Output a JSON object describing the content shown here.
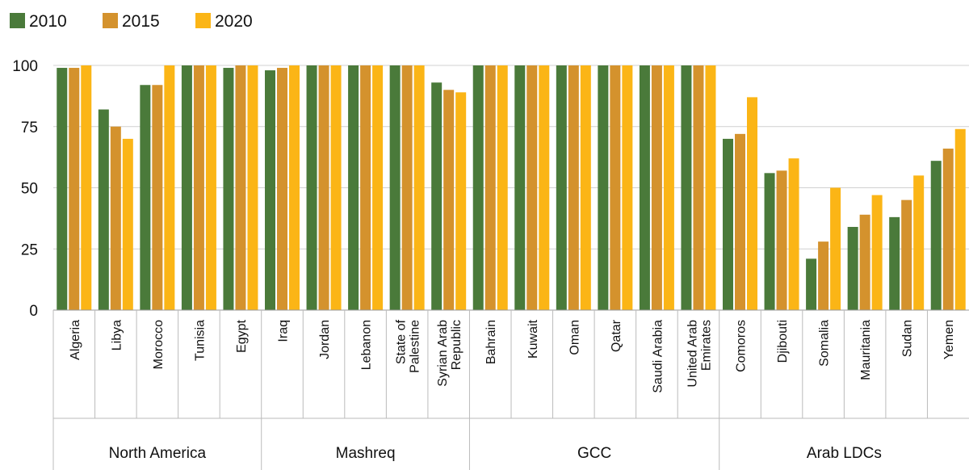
{
  "chart_data": {
    "type": "bar",
    "title": "",
    "xlabel": "",
    "ylabel": "",
    "ylim": [
      0,
      100
    ],
    "yticks": [
      0,
      25,
      50,
      75,
      100
    ],
    "grid": true,
    "legend_position": "top-left",
    "groups": [
      {
        "name": "North America",
        "categories": [
          "Algeria",
          "Libya",
          "Morocco",
          "Tunisia",
          "Egypt"
        ]
      },
      {
        "name": "Mashreq",
        "categories": [
          "Iraq",
          "Jordan",
          "Lebanon",
          "State of Palestine",
          "Syrian Arab Republic"
        ]
      },
      {
        "name": "GCC",
        "categories": [
          "Bahrain",
          "Kuwait",
          "Oman",
          "Qatar",
          "Saudi Arabia",
          "United Arab Emirates"
        ]
      },
      {
        "name": "Arab LDCs",
        "categories": [
          "Comoros",
          "Djibouti",
          "Somalia",
          "Mauritania",
          "Sudan",
          "Yemen"
        ]
      }
    ],
    "categories": [
      "Algeria",
      "Libya",
      "Morocco",
      "Tunisia",
      "Egypt",
      "Iraq",
      "Jordan",
      "Lebanon",
      "State of Palestine",
      "Syrian Arab Republic",
      "Bahrain",
      "Kuwait",
      "Oman",
      "Qatar",
      "Saudi Arabia",
      "United Arab Emirates",
      "Comoros",
      "Djibouti",
      "Somalia",
      "Mauritania",
      "Sudan",
      "Yemen"
    ],
    "category_lines": [
      [
        "Algeria"
      ],
      [
        "Libya"
      ],
      [
        "Morocco"
      ],
      [
        "Tunisia"
      ],
      [
        "Egypt"
      ],
      [
        "Iraq"
      ],
      [
        "Jordan"
      ],
      [
        "Lebanon"
      ],
      [
        "State of",
        "Palestine"
      ],
      [
        "Syrian Arab",
        "Republic"
      ],
      [
        "Bahrain"
      ],
      [
        "Kuwait"
      ],
      [
        "Oman"
      ],
      [
        "Qatar"
      ],
      [
        "Saudi Arabia"
      ],
      [
        "United Arab",
        "Emirates"
      ],
      [
        "Comoros"
      ],
      [
        "Djibouti"
      ],
      [
        "Somalia"
      ],
      [
        "Mauritania"
      ],
      [
        "Sudan"
      ],
      [
        "Yemen"
      ]
    ],
    "series": [
      {
        "name": "2010",
        "color": "#4a7a3a",
        "values": [
          99,
          82,
          92,
          100,
          99,
          98,
          100,
          100,
          100,
          93,
          100,
          100,
          100,
          100,
          100,
          100,
          70,
          56,
          21,
          34,
          38,
          61
        ]
      },
      {
        "name": "2015",
        "color": "#d4922d",
        "values": [
          99,
          75,
          92,
          100,
          100,
          99,
          100,
          100,
          100,
          90,
          100,
          100,
          100,
          100,
          100,
          100,
          72,
          57,
          28,
          39,
          45,
          66
        ]
      },
      {
        "name": "2020",
        "color": "#fbb516",
        "values": [
          100,
          70,
          100,
          100,
          100,
          100,
          100,
          100,
          100,
          89,
          100,
          100,
          100,
          100,
          100,
          100,
          87,
          62,
          50,
          47,
          55,
          74
        ]
      }
    ]
  }
}
